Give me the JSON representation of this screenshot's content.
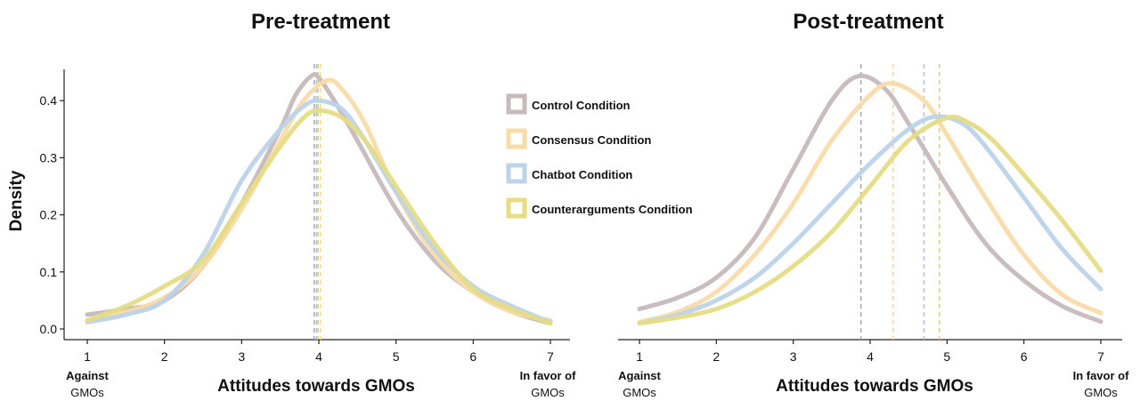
{
  "chart_data": [
    {
      "type": "line",
      "title": "Pre-treatment",
      "xlabel": "Attitudes towards GMOs",
      "ylabel": "Density",
      "x_ticks": [
        1,
        2,
        3,
        4,
        5,
        6,
        7
      ],
      "y_ticks": [
        "0.0",
        "0.1",
        "0.2",
        "0.3",
        "0.4"
      ],
      "xlim": [
        1,
        7
      ],
      "ylim": [
        0,
        0.46
      ],
      "x_end_labels": {
        "left": [
          "Against",
          "GMOs"
        ],
        "right": [
          "In favor of",
          "GMOs"
        ]
      },
      "series": [
        {
          "name": "Control Condition",
          "color": "#c7b9bc",
          "x": [
            1,
            1.5,
            2,
            2.5,
            3,
            3.5,
            3.7,
            3.9,
            4.0,
            4.2,
            4.5,
            5,
            5.5,
            6,
            6.5,
            7
          ],
          "y": [
            0.025,
            0.035,
            0.05,
            0.11,
            0.22,
            0.35,
            0.41,
            0.443,
            0.44,
            0.4,
            0.33,
            0.21,
            0.12,
            0.065,
            0.03,
            0.01
          ],
          "mean": 3.94
        },
        {
          "name": "Consensus Condition",
          "color": "#f9dba8",
          "x": [
            1,
            1.5,
            2,
            2.5,
            3,
            3.5,
            3.8,
            4.1,
            4.3,
            4.6,
            5,
            5.5,
            6,
            6.5,
            7
          ],
          "y": [
            0.015,
            0.03,
            0.055,
            0.11,
            0.21,
            0.33,
            0.4,
            0.435,
            0.42,
            0.36,
            0.24,
            0.13,
            0.065,
            0.03,
            0.015
          ],
          "mean": 4.02
        },
        {
          "name": "Chatbot Condition",
          "color": "#bcd3ea",
          "x": [
            1,
            1.5,
            2,
            2.5,
            3,
            3.5,
            3.8,
            4.0,
            4.3,
            4.6,
            5,
            5.5,
            6,
            6.5,
            7
          ],
          "y": [
            0.012,
            0.025,
            0.05,
            0.13,
            0.26,
            0.35,
            0.39,
            0.4,
            0.385,
            0.33,
            0.24,
            0.14,
            0.075,
            0.04,
            0.012
          ],
          "mean": 3.97
        },
        {
          "name": "Counterarguments Condition",
          "color": "#e5dc84",
          "x": [
            1,
            1.5,
            2,
            2.5,
            3,
            3.5,
            3.8,
            4.0,
            4.3,
            4.6,
            5,
            5.5,
            6,
            6.5,
            7
          ],
          "y": [
            0.015,
            0.04,
            0.075,
            0.12,
            0.22,
            0.32,
            0.37,
            0.383,
            0.37,
            0.33,
            0.25,
            0.15,
            0.07,
            0.035,
            0.01
          ],
          "mean": 3.99
        }
      ]
    },
    {
      "type": "line",
      "title": "Post-treatment",
      "xlabel": "Attitudes towards GMOs",
      "ylabel": "",
      "x_ticks": [
        1,
        2,
        3,
        4,
        5,
        6,
        7
      ],
      "y_ticks": [],
      "xlim": [
        1,
        7
      ],
      "ylim": [
        0,
        0.46
      ],
      "x_end_labels": {
        "left": [
          "Against",
          "GMOs"
        ],
        "right": [
          "In favor of",
          "GMOs"
        ]
      },
      "series": [
        {
          "name": "Control Condition",
          "color": "#c7b9bc",
          "x": [
            1,
            1.5,
            2,
            2.5,
            3,
            3.5,
            3.85,
            4.2,
            4.5,
            5,
            5.5,
            6,
            6.5,
            7
          ],
          "y": [
            0.035,
            0.055,
            0.09,
            0.16,
            0.28,
            0.4,
            0.443,
            0.42,
            0.36,
            0.25,
            0.15,
            0.085,
            0.04,
            0.013
          ],
          "mean": 3.88
        },
        {
          "name": "Consensus Condition",
          "color": "#f9dba8",
          "x": [
            1,
            1.5,
            2,
            2.5,
            3,
            3.5,
            4.0,
            4.3,
            4.7,
            5,
            5.5,
            6,
            6.5,
            7
          ],
          "y": [
            0.012,
            0.03,
            0.065,
            0.13,
            0.22,
            0.33,
            0.41,
            0.43,
            0.4,
            0.34,
            0.23,
            0.13,
            0.06,
            0.028
          ],
          "mean": 4.3
        },
        {
          "name": "Chatbot Condition",
          "color": "#bcd3ea",
          "x": [
            1,
            1.5,
            2,
            2.5,
            3,
            3.5,
            4.0,
            4.5,
            4.85,
            5.2,
            5.5,
            6,
            6.5,
            7
          ],
          "y": [
            0.01,
            0.025,
            0.05,
            0.09,
            0.15,
            0.22,
            0.29,
            0.35,
            0.372,
            0.36,
            0.32,
            0.23,
            0.14,
            0.07
          ],
          "mean": 4.7
        },
        {
          "name": "Counterarguments Condition",
          "color": "#e5dc84",
          "x": [
            1,
            1.5,
            2,
            2.5,
            3,
            3.5,
            4.0,
            4.5,
            5.0,
            5.3,
            5.6,
            6,
            6.5,
            7
          ],
          "y": [
            0.01,
            0.02,
            0.035,
            0.065,
            0.11,
            0.17,
            0.25,
            0.33,
            0.37,
            0.36,
            0.33,
            0.27,
            0.19,
            0.102
          ],
          "mean": 4.9
        }
      ]
    }
  ],
  "legend": {
    "placement": "center-top, between panels",
    "items": [
      {
        "label": "Control Condition",
        "color": "#c7b9bc"
      },
      {
        "label": "Consensus Condition",
        "color": "#f9dba8"
      },
      {
        "label": "Chatbot Condition",
        "color": "#bcd3ea"
      },
      {
        "label": "Counterarguments Condition",
        "color": "#e5dc84"
      }
    ]
  },
  "mean_line_colors": {
    "Control Condition": "#a9a7ae",
    "Consensus Condition": "#f5d890",
    "Chatbot Condition": "#a9c3e3",
    "Counterarguments Condition": "#e0cf6a"
  }
}
